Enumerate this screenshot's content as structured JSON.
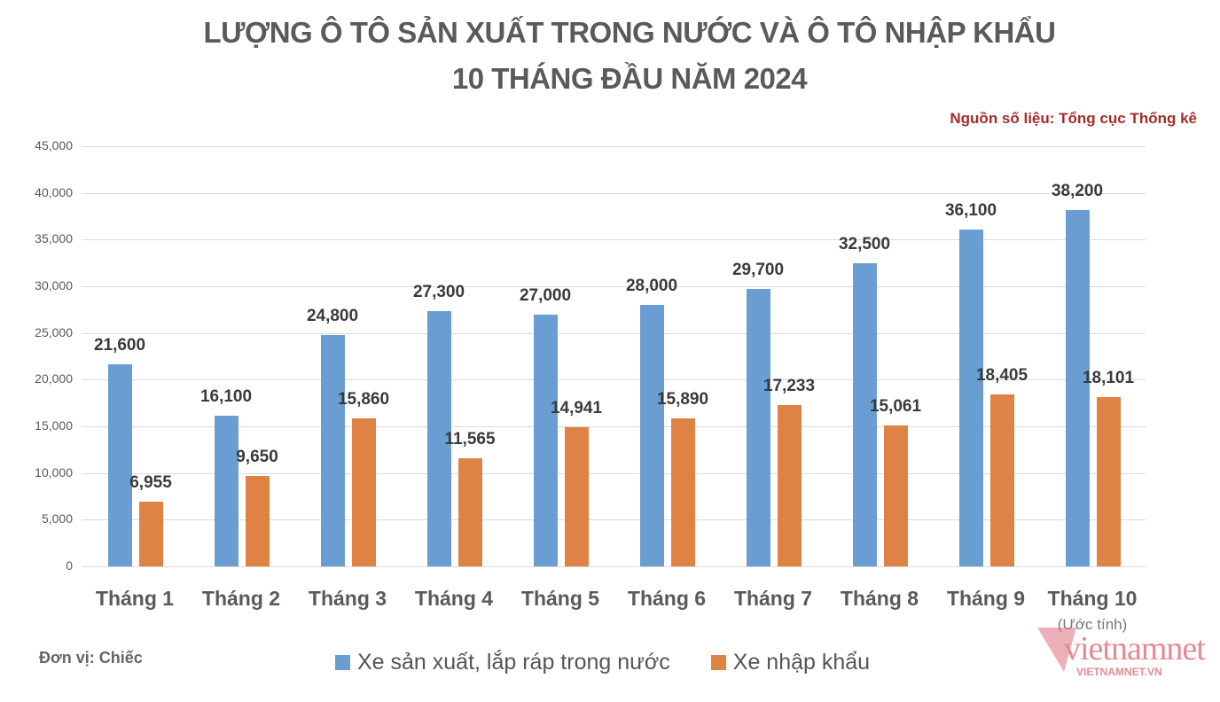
{
  "header": {
    "title_line1": "LƯỢNG Ô TÔ SẢN XUẤT TRONG NƯỚC VÀ Ô TÔ NHẬP KHẨU",
    "title_line2": "10 THÁNG ĐẦU NĂM 2024",
    "source": "Nguồn số liệu: Tổng cục Thống kê"
  },
  "footer": {
    "unit": "Đơn vị: Chiếc",
    "estimate_note": "(Ước tính)",
    "watermark": "vietnamnet",
    "watermark_sub": "VIETNAMNET.VN"
  },
  "colors": {
    "domestic": "#6a9ed3",
    "imported": "#de8344",
    "source": "#a52a2a"
  },
  "chart_data": {
    "type": "bar",
    "title": "LƯỢNG Ô TÔ SẢN XUẤT TRONG NƯỚC VÀ Ô TÔ NHẬP KHẨU 10 THÁNG ĐẦU NĂM 2024",
    "xlabel": "",
    "ylabel": "",
    "ylim": [
      0,
      45000
    ],
    "yticks": [
      "0",
      "5,000",
      "10,000",
      "15,000",
      "20,000",
      "25,000",
      "30,000",
      "35,000",
      "40,000",
      "45,000"
    ],
    "grid": true,
    "legend_position": "bottom",
    "categories": [
      "Tháng 1",
      "Tháng 2",
      "Tháng 3",
      "Tháng 4",
      "Tháng 5",
      "Tháng 6",
      "Tháng 7",
      "Tháng 8",
      "Tháng 9",
      "Tháng 10"
    ],
    "series": [
      {
        "name": "Xe sản xuất, lắp ráp trong nước",
        "color": "#6a9ed3",
        "values": [
          21600,
          16100,
          24800,
          27300,
          27000,
          28000,
          29700,
          32500,
          36100,
          38200
        ],
        "labels": [
          "21,600",
          "16,100",
          "24,800",
          "27,300",
          "27,000",
          "28,000",
          "29,700",
          "32,500",
          "36,100",
          "38,200"
        ]
      },
      {
        "name": "Xe nhập khẩu",
        "color": "#de8344",
        "values": [
          6955,
          9650,
          15860,
          11565,
          14941,
          15890,
          17233,
          15061,
          18405,
          18101
        ],
        "labels": [
          "6,955",
          "9,650",
          "15,860",
          "11,565",
          "14,941",
          "15,890",
          "17,233",
          "15,061",
          "18,405",
          "18,101"
        ]
      }
    ],
    "annotations": [
      "Tháng 10 (Ước tính)"
    ]
  }
}
